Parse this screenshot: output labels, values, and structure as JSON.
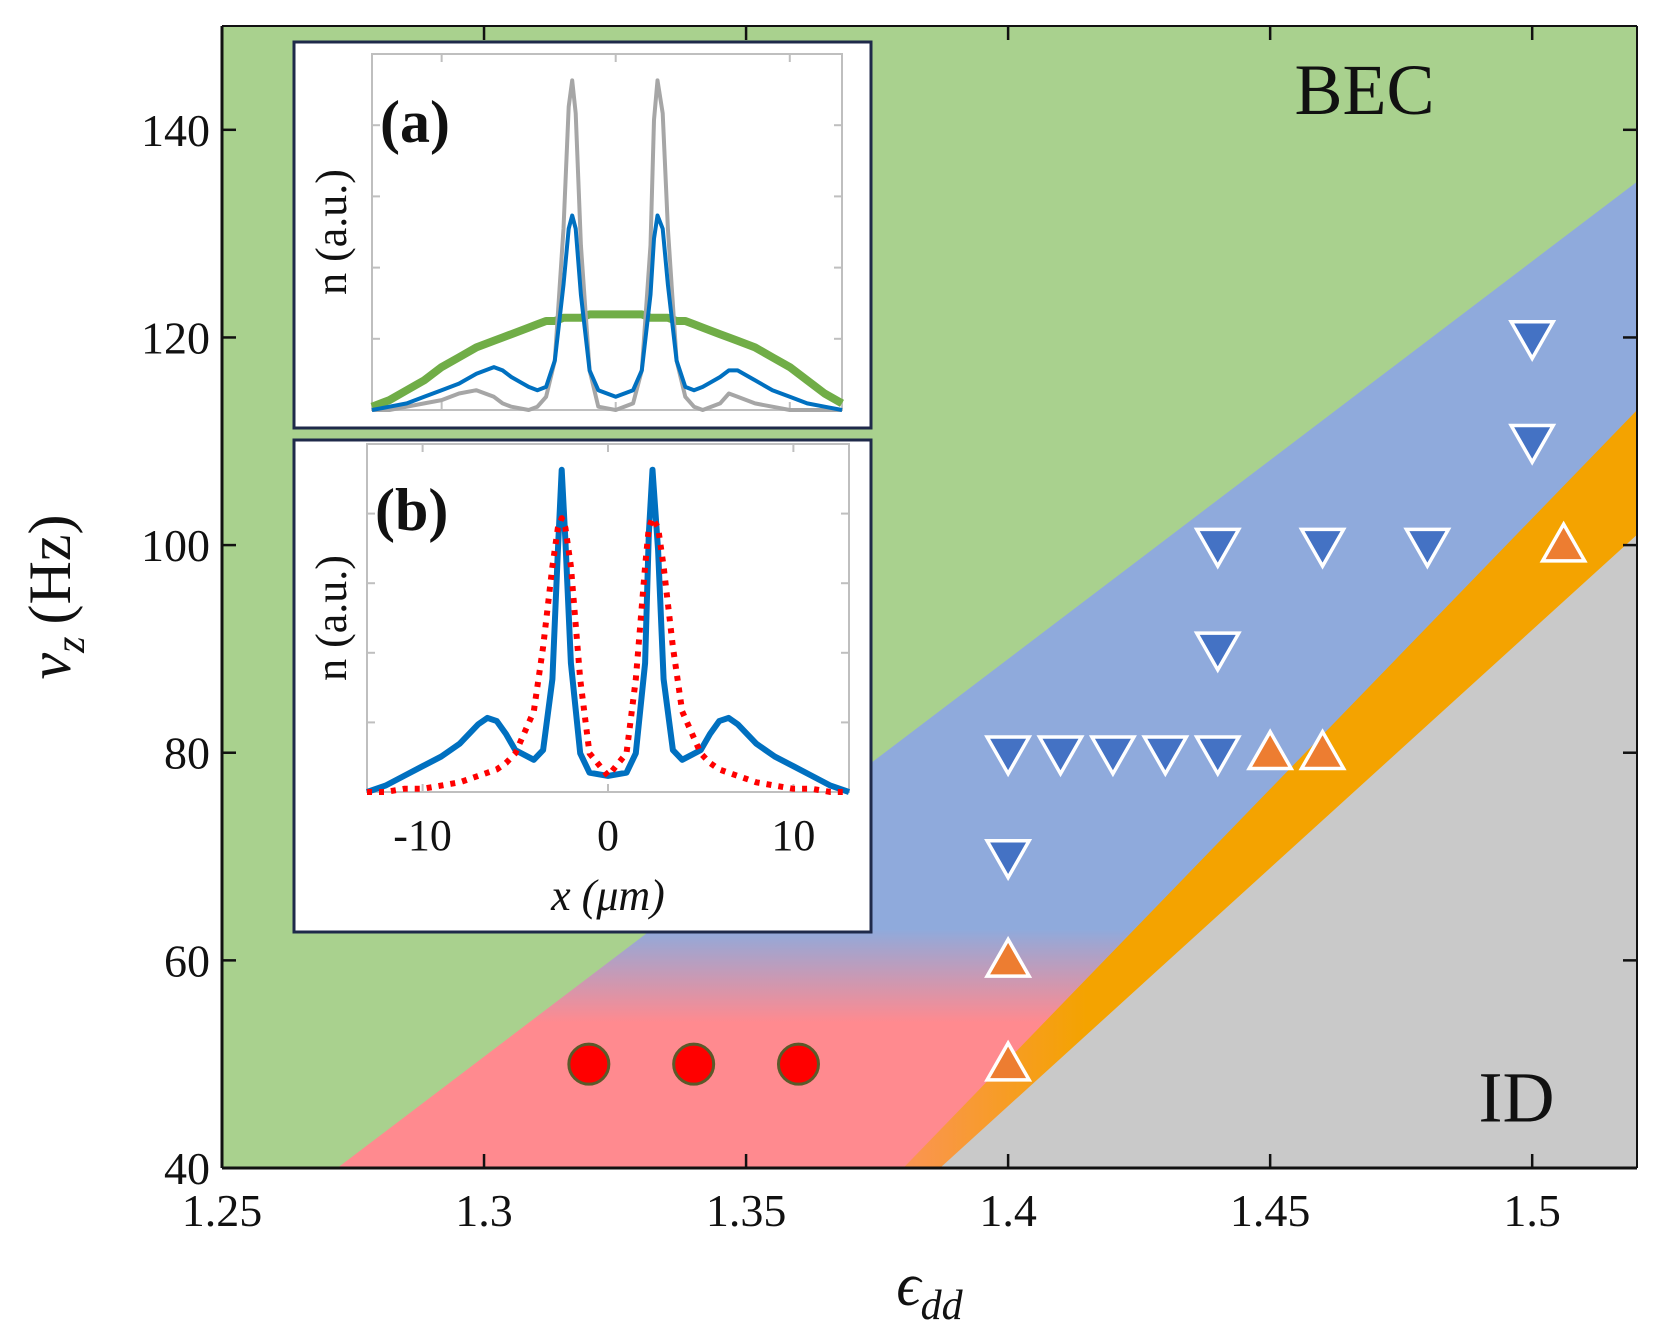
{
  "chart_data": {
    "type": "scatter",
    "title": "",
    "xlabel": "ϵ",
    "xlabel_sub": "dd",
    "ylabel": "ν",
    "ylabel_sub": "z",
    "ylabel_unit": "(Hz)",
    "xlim": [
      1.25,
      1.52
    ],
    "ylim": [
      40,
      150
    ],
    "xticks": [
      1.25,
      1.3,
      1.35,
      1.4,
      1.45,
      1.5
    ],
    "xtick_labels": [
      "1.25",
      "1.3",
      "1.35",
      "1.4",
      "1.45",
      "1.5"
    ],
    "yticks": [
      40,
      60,
      80,
      100,
      120,
      140
    ],
    "ytick_labels": [
      "40",
      "60",
      "80",
      "100",
      "120",
      "140"
    ],
    "region_labels": {
      "bec": "BEC",
      "id": "ID"
    },
    "regions": {
      "blue_upper_boundary": [
        [
          1.272,
          40
        ],
        [
          1.52,
          135
        ]
      ],
      "orange_upper_boundary": [
        [
          1.38,
          40
        ],
        [
          1.52,
          113
        ]
      ],
      "orange_lower_boundary": [
        [
          1.387,
          40
        ],
        [
          1.52,
          101
        ]
      ],
      "red_to_blue_transition_nu": 58,
      "red_to_orange_transition_eps": 1.385
    },
    "colors": {
      "bec": "#a9d18e",
      "blue": "#8faadc",
      "red": "#ff8a8f",
      "orange": "#f4a300",
      "grey": "#c9c9c9",
      "down_marker": "#4472c4",
      "up_marker": "#ed7d31",
      "circle_marker": "#ff0000",
      "circle_edge": "#5a5a2a"
    },
    "series": [
      {
        "name": "down-triangles",
        "marker": "triangle-down",
        "points": [
          [
            1.4,
            80
          ],
          [
            1.41,
            80
          ],
          [
            1.42,
            80
          ],
          [
            1.43,
            80
          ],
          [
            1.44,
            80
          ],
          [
            1.4,
            70
          ],
          [
            1.44,
            90
          ],
          [
            1.44,
            100
          ],
          [
            1.46,
            100
          ],
          [
            1.48,
            100
          ],
          [
            1.5,
            110
          ],
          [
            1.5,
            120
          ]
        ]
      },
      {
        "name": "up-triangles",
        "marker": "triangle-up",
        "points": [
          [
            1.4,
            50
          ],
          [
            1.4,
            60
          ],
          [
            1.45,
            80
          ],
          [
            1.46,
            80
          ],
          [
            1.506,
            100
          ]
        ]
      },
      {
        "name": "circles",
        "marker": "circle",
        "points": [
          [
            1.32,
            50
          ],
          [
            1.34,
            50
          ],
          [
            1.36,
            50
          ]
        ]
      }
    ],
    "insets": [
      {
        "panel": "(a)",
        "ylabel": "n (a.u.)",
        "xlim": [
          -14,
          13
        ],
        "ylim": [
          0,
          1.08
        ],
        "x": [
          -14,
          -13,
          -12,
          -11,
          -10,
          -9,
          -8,
          -7,
          -6.5,
          -6,
          -5,
          -4.5,
          -4,
          -3.5,
          -3,
          -2.7,
          -2.5,
          -2.3,
          -2,
          -1.5,
          -1,
          0,
          1,
          1.5,
          2,
          2.2,
          2.4,
          2.7,
          3,
          3.5,
          4,
          4.5,
          5,
          6,
          6.5,
          7,
          8,
          9,
          10,
          11,
          12,
          13
        ],
        "series": [
          {
            "name": "green",
            "color": "#70ad47",
            "values": [
              0.01,
              0.03,
              0.06,
              0.09,
              0.13,
              0.16,
              0.19,
              0.21,
              0.22,
              0.23,
              0.25,
              0.26,
              0.27,
              0.27,
              0.28,
              0.28,
              0.28,
              0.28,
              0.28,
              0.29,
              0.29,
              0.29,
              0.29,
              0.29,
              0.28,
              0.28,
              0.28,
              0.28,
              0.28,
              0.27,
              0.27,
              0.26,
              0.25,
              0.23,
              0.22,
              0.21,
              0.19,
              0.16,
              0.13,
              0.09,
              0.05,
              0.02
            ]
          },
          {
            "name": "grey",
            "color": "#a6a6a6",
            "values": [
              0.0,
              0.0,
              0.01,
              0.02,
              0.03,
              0.05,
              0.06,
              0.04,
              0.02,
              0.01,
              0.0,
              0.01,
              0.04,
              0.15,
              0.55,
              0.92,
              1.0,
              0.9,
              0.5,
              0.12,
              0.01,
              0.0,
              0.02,
              0.12,
              0.5,
              0.88,
              1.0,
              0.9,
              0.55,
              0.15,
              0.04,
              0.01,
              0.0,
              0.02,
              0.05,
              0.04,
              0.02,
              0.01,
              0.0,
              0.0,
              0.0,
              0.0
            ]
          },
          {
            "name": "blue",
            "color": "#0070c0",
            "values": [
              0.0,
              0.01,
              0.02,
              0.04,
              0.06,
              0.08,
              0.11,
              0.13,
              0.12,
              0.1,
              0.07,
              0.06,
              0.07,
              0.15,
              0.38,
              0.55,
              0.59,
              0.55,
              0.35,
              0.12,
              0.06,
              0.04,
              0.06,
              0.12,
              0.35,
              0.52,
              0.59,
              0.55,
              0.38,
              0.15,
              0.07,
              0.06,
              0.07,
              0.1,
              0.12,
              0.12,
              0.09,
              0.06,
              0.04,
              0.02,
              0.01,
              0.0
            ]
          }
        ]
      },
      {
        "panel": "(b)",
        "ylabel": "n (a.u.)",
        "xlabel": "x (μm)",
        "xlim": [
          -13,
          13
        ],
        "ylim": [
          0,
          1.08
        ],
        "xticks": [
          -10,
          0,
          10
        ],
        "xtick_labels": [
          "-10",
          "0",
          "10"
        ],
        "x": [
          -13,
          -12,
          -11,
          -10,
          -9,
          -8,
          -7,
          -6.5,
          -6,
          -5.5,
          -5,
          -4,
          -3.5,
          -3,
          -2.7,
          -2.5,
          -2.3,
          -2,
          -1.5,
          -1,
          0,
          1,
          1.5,
          2,
          2.2,
          2.4,
          2.7,
          3,
          3.5,
          4,
          5,
          5.5,
          6,
          6.5,
          7,
          8,
          9,
          10,
          11,
          12,
          13
        ],
        "series": [
          {
            "name": "blue-solid",
            "color": "#0070c0",
            "values": [
              0.0,
              0.02,
              0.05,
              0.08,
              0.11,
              0.15,
              0.21,
              0.23,
              0.22,
              0.18,
              0.13,
              0.1,
              0.13,
              0.35,
              0.75,
              1.0,
              0.78,
              0.4,
              0.12,
              0.06,
              0.05,
              0.06,
              0.12,
              0.4,
              0.8,
              1.0,
              0.75,
              0.35,
              0.13,
              0.1,
              0.13,
              0.18,
              0.22,
              0.23,
              0.21,
              0.15,
              0.11,
              0.08,
              0.05,
              0.02,
              0.0
            ]
          },
          {
            "name": "red-dotted",
            "color": "#ff0000",
            "values": [
              0.0,
              0.0,
              0.01,
              0.01,
              0.02,
              0.03,
              0.05,
              0.06,
              0.07,
              0.09,
              0.12,
              0.25,
              0.45,
              0.7,
              0.82,
              0.85,
              0.82,
              0.7,
              0.35,
              0.12,
              0.05,
              0.12,
              0.35,
              0.7,
              0.82,
              0.85,
              0.82,
              0.7,
              0.45,
              0.25,
              0.12,
              0.09,
              0.07,
              0.06,
              0.05,
              0.03,
              0.02,
              0.01,
              0.01,
              0.0,
              0.0
            ]
          }
        ]
      }
    ]
  }
}
